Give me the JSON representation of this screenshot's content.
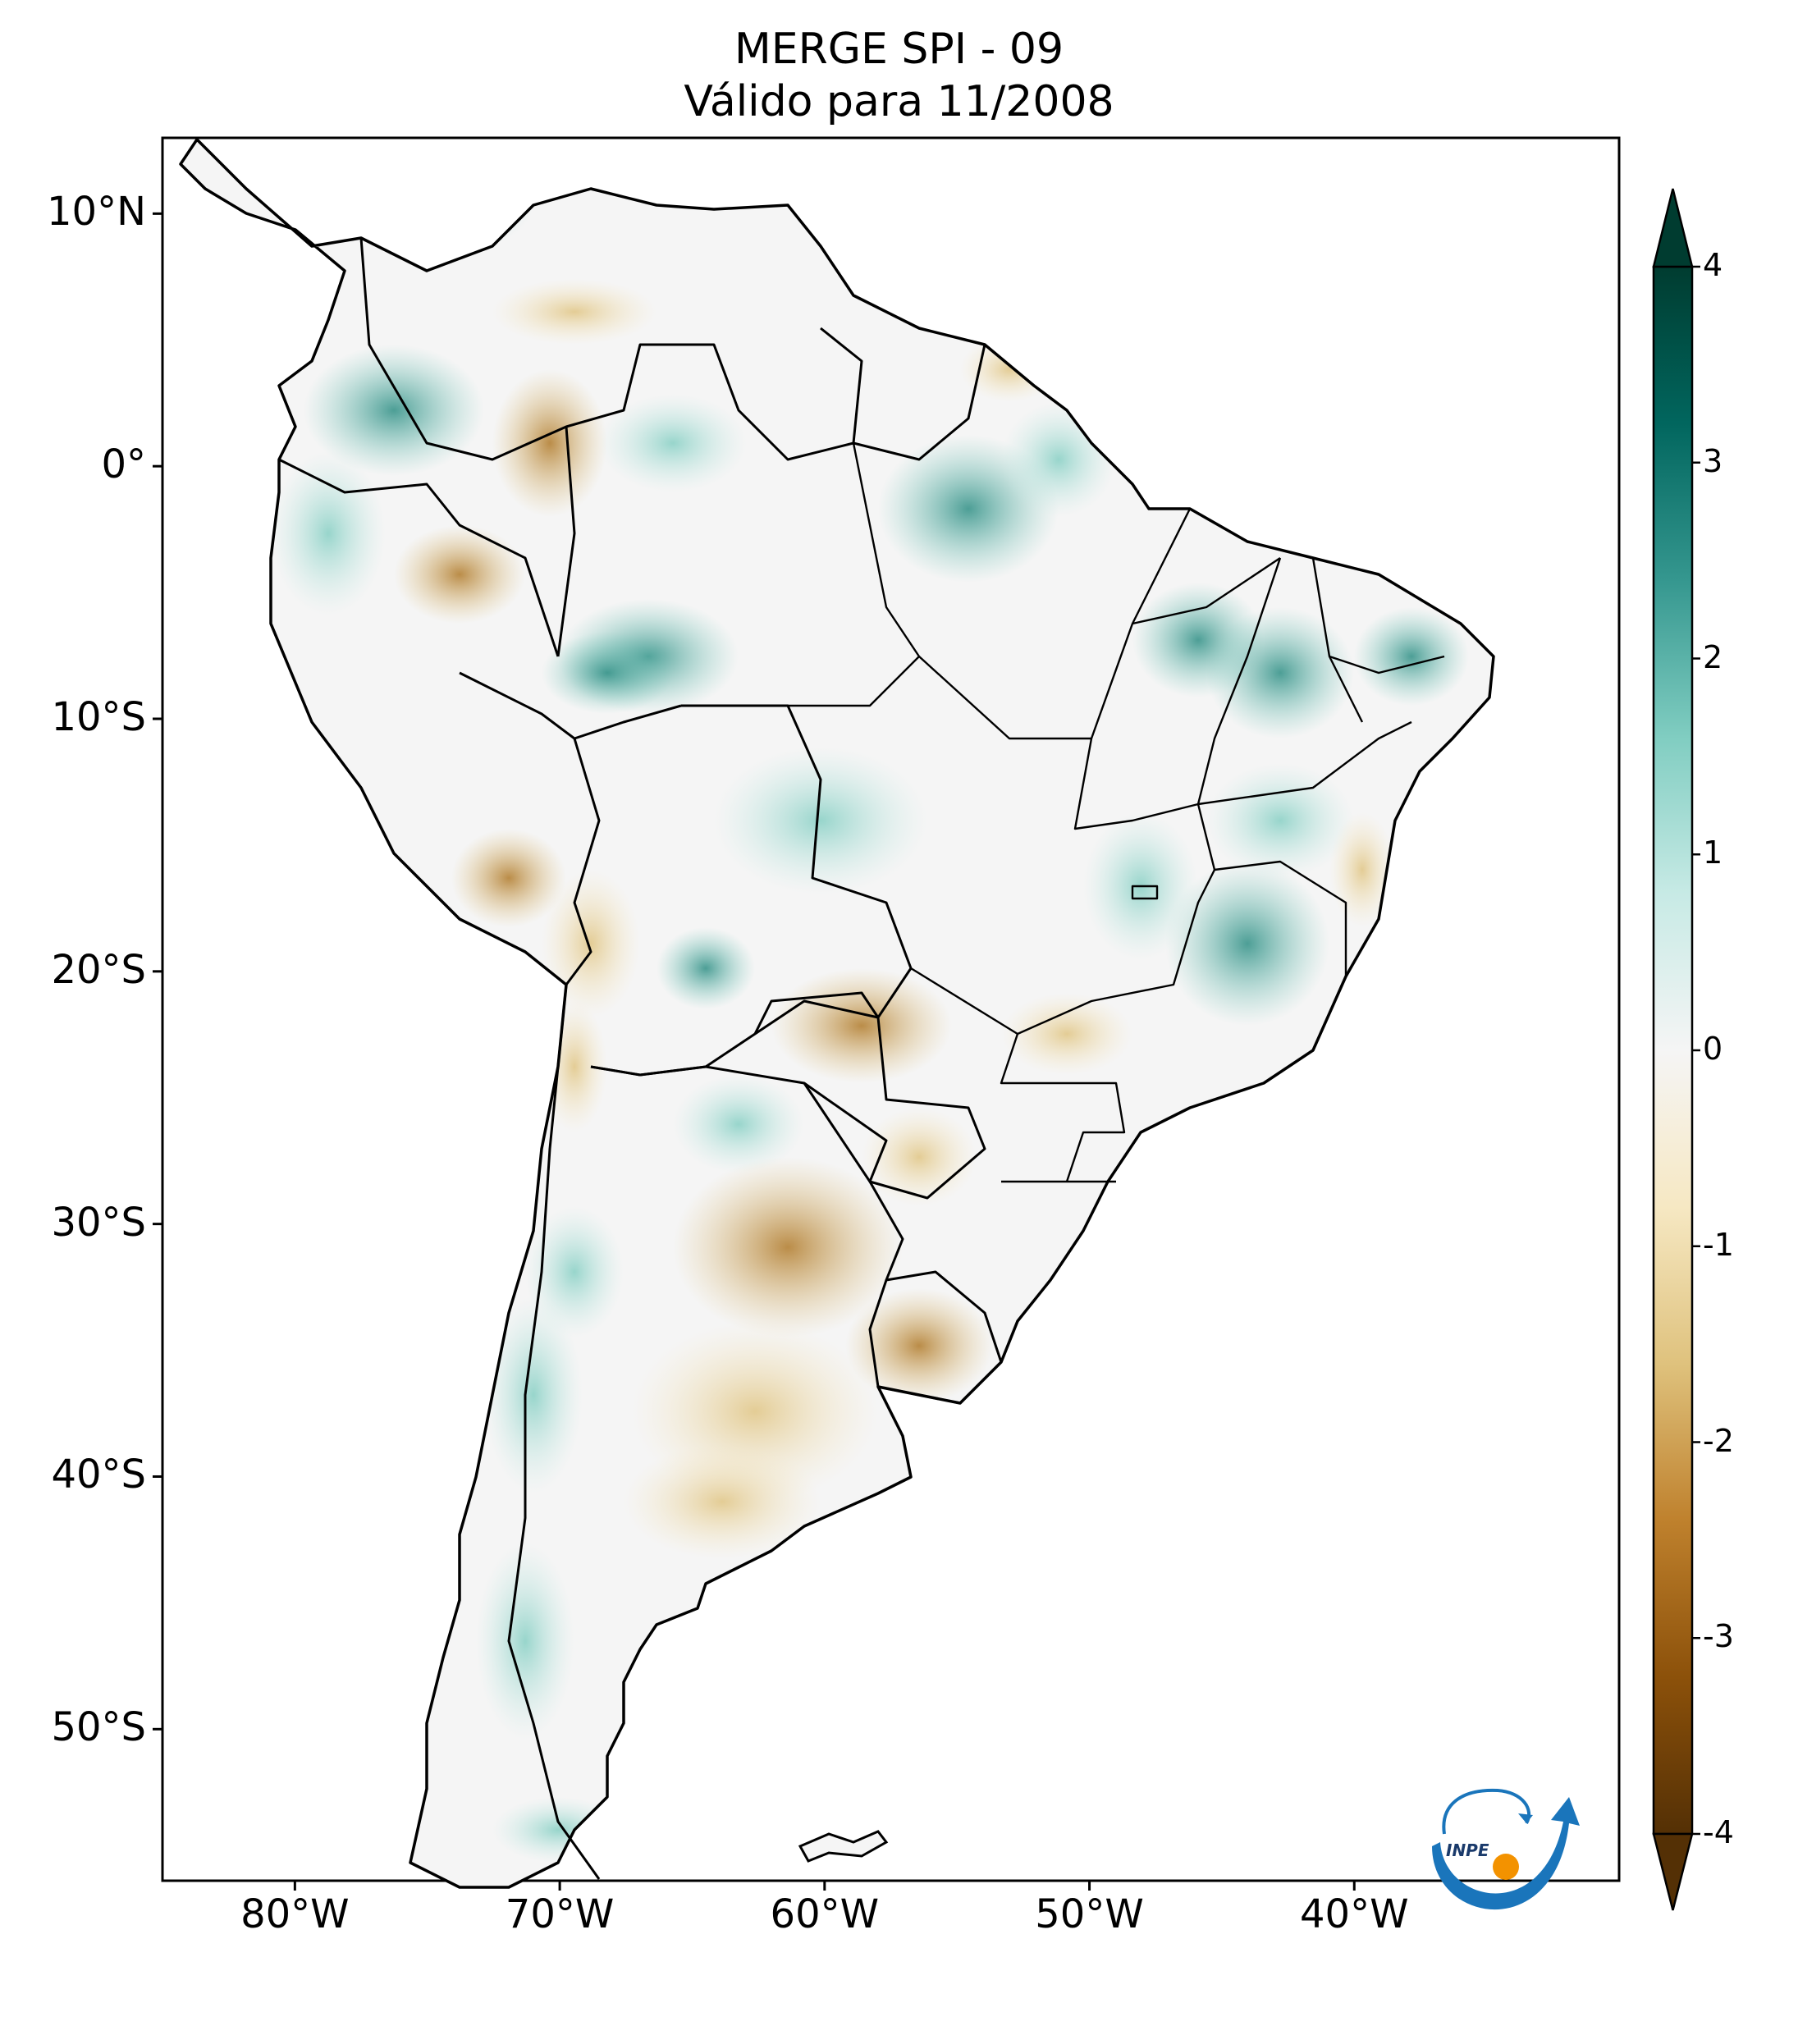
{
  "title": {
    "line1": "MERGE   SPI - 09",
    "line2": "Válido para 11/2008"
  },
  "map": {
    "lon_range": [
      -85,
      -30
    ],
    "lat_range": [
      -56,
      13
    ],
    "lat_ticks": [
      {
        "value": 10,
        "label": "10°N"
      },
      {
        "value": 0,
        "label": "0°"
      },
      {
        "value": -10,
        "label": "10°S"
      },
      {
        "value": -20,
        "label": "20°S"
      },
      {
        "value": -30,
        "label": "30°S"
      },
      {
        "value": -40,
        "label": "40°S"
      },
      {
        "value": -50,
        "label": "50°S"
      }
    ],
    "lon_ticks": [
      {
        "value": -80,
        "label": "80°W"
      },
      {
        "value": -70,
        "label": "70°W"
      },
      {
        "value": -60,
        "label": "60°W"
      },
      {
        "value": -50,
        "label": "50°W"
      },
      {
        "value": -40,
        "label": "40°W"
      }
    ]
  },
  "colorbar": {
    "range": [
      -4,
      4
    ],
    "ticks": [
      {
        "value": 4,
        "label": "4"
      },
      {
        "value": 3,
        "label": "3"
      },
      {
        "value": 2,
        "label": "2"
      },
      {
        "value": 1,
        "label": "1"
      },
      {
        "value": 0,
        "label": "0"
      },
      {
        "value": -1,
        "label": "-1"
      },
      {
        "value": -2,
        "label": "-2"
      },
      {
        "value": -3,
        "label": "-3"
      },
      {
        "value": -4,
        "label": "-4"
      }
    ],
    "colors": [
      "#003c30",
      "#01665e",
      "#35978f",
      "#80cdc1",
      "#c7eae5",
      "#f5f5f5",
      "#f6e8c3",
      "#dfc27d",
      "#bf812d",
      "#8c510a",
      "#543005"
    ]
  },
  "logo": {
    "text": "INPE",
    "colors": {
      "blue": "#1a75bb",
      "orange": "#f39200"
    }
  }
}
